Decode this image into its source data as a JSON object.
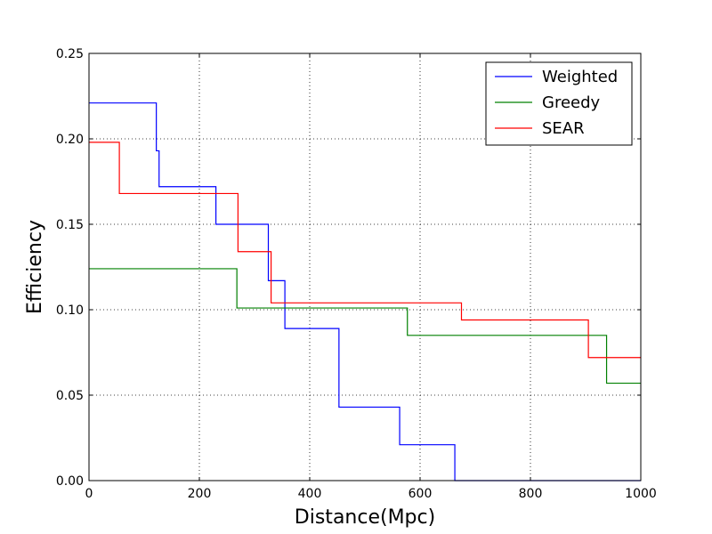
{
  "chart_data": {
    "type": "line",
    "title": "",
    "xlabel": "Distance(Mpc)",
    "ylabel": "Efficiency",
    "xlim": [
      0,
      1000
    ],
    "ylim": [
      0,
      0.25
    ],
    "xticks": [
      0,
      200,
      400,
      600,
      800,
      1000
    ],
    "xtick_labels": [
      "0",
      "200",
      "400",
      "600",
      "800",
      "1000"
    ],
    "yticks": [
      0,
      0.05,
      0.1,
      0.15,
      0.2,
      0.25
    ],
    "ytick_labels": [
      "0.00",
      "0.05",
      "0.10",
      "0.15",
      "0.20",
      "0.25"
    ],
    "grid": true,
    "legend": "top-right",
    "series": [
      {
        "name": "Weighted",
        "color": "#0000ff",
        "x": [
          0,
          122,
          122,
          127,
          127,
          230,
          230,
          325,
          325,
          355,
          355,
          453,
          453,
          563,
          563,
          663,
          663,
          1000
        ],
        "y": [
          0.221,
          0.221,
          0.193,
          0.193,
          0.172,
          0.172,
          0.15,
          0.15,
          0.117,
          0.117,
          0.089,
          0.089,
          0.043,
          0.043,
          0.021,
          0.021,
          0,
          0
        ]
      },
      {
        "name": "Greedy",
        "color": "#008000",
        "x": [
          0,
          268,
          268,
          577,
          577,
          938,
          938,
          1000
        ],
        "y": [
          0.124,
          0.124,
          0.101,
          0.101,
          0.085,
          0.085,
          0.057,
          0.057
        ]
      },
      {
        "name": "SEAR",
        "color": "#ff0000",
        "x": [
          0,
          55,
          55,
          270,
          270,
          330,
          330,
          675,
          675,
          905,
          905,
          1000
        ],
        "y": [
          0.198,
          0.198,
          0.168,
          0.168,
          0.134,
          0.134,
          0.104,
          0.104,
          0.094,
          0.094,
          0.072,
          0.072
        ]
      }
    ]
  }
}
